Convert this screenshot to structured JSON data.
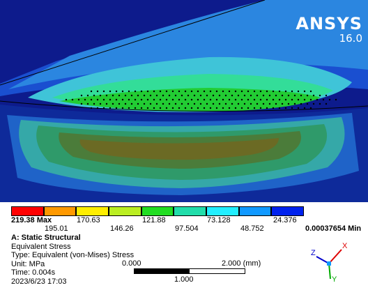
{
  "brand": {
    "name": "ANSYS",
    "version": "16.0"
  },
  "colors": {
    "background_blue": "#0d1b8c",
    "legend": [
      "#ff0000",
      "#ff9900",
      "#ffee00",
      "#bbee22",
      "#22dd22",
      "#22ddaa",
      "#22eeff",
      "#1199ff",
      "#0022ee"
    ]
  },
  "legend": {
    "top_labels": [
      "219.38 Max",
      "170.63",
      "121.88",
      "73.128",
      "24.376"
    ],
    "bottom_labels": [
      "195.01",
      "146.26",
      "97.504",
      "48.752"
    ],
    "min_label": "0.00037654 Min"
  },
  "info": {
    "title": "A: Static Structural",
    "result": "Equivalent Stress",
    "type": "Type: Equivalent (von-Mises) Stress",
    "unit": "Unit: MPa",
    "time": "Time: 0.004s",
    "date": "2023/6/23 17:03"
  },
  "scale": {
    "left": "0.000",
    "right": "2.000 (mm)",
    "mid": "1.000"
  },
  "triad": {
    "x": "X",
    "y": "Y",
    "z": "Z"
  }
}
